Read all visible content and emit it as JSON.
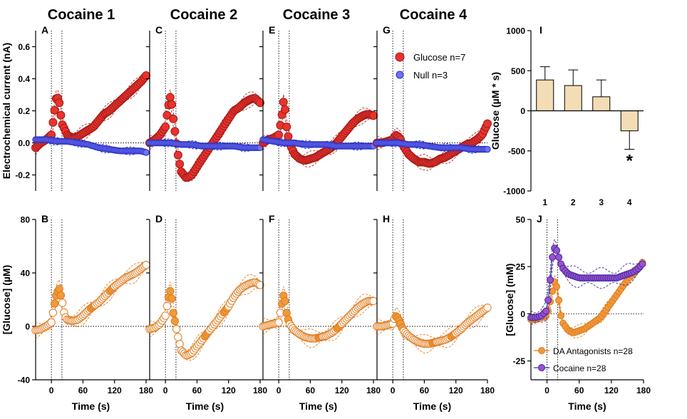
{
  "colors": {
    "glucose_dot": "#e8332e",
    "glucose_edge": "#a31a16",
    "glucose_sem": "#b3261e",
    "null_dot": "#6f73f5",
    "null_edge": "#2a2fc2",
    "null_sem": "#2a2fc2",
    "orange": "#ef9a3a",
    "orange_sem": "#e07a1e",
    "purple": "#9b4fd1",
    "purple_sem": "#3f2a9e",
    "bar_fill": "#f2ddb5",
    "axis": "#000000"
  },
  "chart_data": [
    {
      "type": "line",
      "title": "Cocaine 1",
      "panel": "A",
      "ylabel": "Electrochemical current (nA)",
      "ylim": [
        -0.3,
        0.7
      ],
      "yticks": [
        "0.6",
        "0.4",
        "0.2",
        "0.0",
        "-0.2"
      ],
      "xlim": [
        -30,
        180
      ],
      "series": [
        {
          "name": "Glucose n=7",
          "x": [
            -30,
            -20,
            -10,
            0,
            5,
            10,
            15,
            20,
            30,
            40,
            50,
            60,
            70,
            80,
            90,
            100,
            110,
            120,
            130,
            140,
            150,
            160,
            170,
            180
          ],
          "values": [
            -0.03,
            0.0,
            0.02,
            0.05,
            0.18,
            0.3,
            0.25,
            0.12,
            0.05,
            0.03,
            0.04,
            0.06,
            0.08,
            0.1,
            0.14,
            0.18,
            0.2,
            0.23,
            0.26,
            0.29,
            0.32,
            0.35,
            0.38,
            0.42
          ]
        },
        {
          "name": "Null n=3",
          "x": [
            -30,
            -10,
            10,
            30,
            50,
            70,
            90,
            110,
            130,
            150,
            170,
            180
          ],
          "values": [
            0.02,
            0.02,
            0.01,
            0.01,
            0.0,
            -0.01,
            -0.03,
            -0.04,
            -0.05,
            -0.05,
            -0.05,
            -0.06
          ]
        }
      ]
    },
    {
      "type": "line",
      "title": "Cocaine 2",
      "panel": "C",
      "ylim": [
        -0.3,
        0.7
      ],
      "xlim": [
        -30,
        180
      ],
      "series": [
        {
          "name": "Glucose n=7",
          "x": [
            -30,
            -20,
            -10,
            0,
            5,
            10,
            15,
            20,
            25,
            30,
            40,
            50,
            60,
            70,
            80,
            90,
            100,
            110,
            120,
            130,
            140,
            150,
            160,
            170,
            180
          ],
          "values": [
            0.0,
            0.02,
            0.05,
            0.1,
            0.22,
            0.3,
            0.15,
            0.02,
            -0.1,
            -0.18,
            -0.22,
            -0.2,
            -0.15,
            -0.1,
            -0.05,
            0.0,
            0.05,
            0.1,
            0.15,
            0.2,
            0.22,
            0.25,
            0.27,
            0.28,
            0.25
          ]
        },
        {
          "name": "Null n=3",
          "x": [
            -30,
            -10,
            10,
            30,
            50,
            70,
            90,
            110,
            130,
            150,
            170,
            180
          ],
          "values": [
            0.0,
            0.0,
            0.0,
            -0.01,
            -0.01,
            -0.02,
            -0.02,
            -0.02,
            -0.02,
            -0.03,
            -0.03,
            -0.03
          ]
        }
      ]
    },
    {
      "type": "line",
      "title": "Cocaine 3",
      "panel": "E",
      "ylim": [
        -0.3,
        0.7
      ],
      "xlim": [
        -30,
        180
      ],
      "series": [
        {
          "name": "Glucose n=7",
          "x": [
            -30,
            -20,
            -10,
            0,
            5,
            10,
            15,
            20,
            30,
            40,
            50,
            60,
            70,
            80,
            90,
            100,
            110,
            120,
            130,
            140,
            150,
            160,
            170,
            180
          ],
          "values": [
            0.0,
            0.02,
            0.03,
            0.05,
            0.15,
            0.28,
            0.1,
            0.0,
            -0.07,
            -0.1,
            -0.11,
            -0.1,
            -0.09,
            -0.07,
            -0.05,
            -0.03,
            0.0,
            0.04,
            0.08,
            0.12,
            0.15,
            0.17,
            0.18,
            0.17
          ]
        },
        {
          "name": "Null n=3",
          "x": [
            -30,
            -10,
            10,
            30,
            50,
            70,
            90,
            110,
            130,
            150,
            170,
            180
          ],
          "values": [
            0.02,
            0.01,
            0.0,
            0.0,
            -0.01,
            -0.01,
            -0.01,
            -0.02,
            -0.02,
            -0.02,
            -0.02,
            -0.02
          ]
        }
      ]
    },
    {
      "type": "line",
      "title": "Cocaine 4",
      "panel": "G",
      "ylim": [
        -0.3,
        0.7
      ],
      "xlim": [
        -30,
        180
      ],
      "series": [
        {
          "name": "Glucose n=7",
          "x": [
            -30,
            -20,
            -10,
            0,
            5,
            10,
            15,
            20,
            30,
            40,
            50,
            60,
            70,
            80,
            90,
            100,
            110,
            120,
            130,
            140,
            150,
            160,
            170,
            180
          ],
          "values": [
            0.0,
            0.0,
            0.01,
            0.02,
            0.05,
            0.04,
            0.02,
            -0.02,
            -0.07,
            -0.1,
            -0.12,
            -0.12,
            -0.13,
            -0.12,
            -0.1,
            -0.09,
            -0.07,
            -0.05,
            -0.03,
            -0.01,
            0.0,
            0.02,
            0.05,
            0.12
          ]
        },
        {
          "name": "Null n=3",
          "x": [
            -30,
            -10,
            10,
            30,
            50,
            70,
            90,
            110,
            130,
            150,
            170,
            180
          ],
          "values": [
            0.0,
            0.0,
            0.0,
            -0.01,
            -0.01,
            -0.02,
            -0.03,
            -0.03,
            -0.03,
            -0.04,
            -0.04,
            -0.04
          ]
        }
      ],
      "legend": [
        "Glucose n=7",
        "Null n=3"
      ]
    },
    {
      "type": "line",
      "panel": "B",
      "ylabel": "[Glucose] (µM)",
      "xlabel": "Time (s)",
      "ylim": [
        -40,
        80
      ],
      "yticks": [
        "80",
        "40",
        "0",
        "-40"
      ],
      "xticks": [
        "0",
        "60",
        "120",
        "180"
      ],
      "xlim": [
        -30,
        180
      ],
      "series": [
        {
          "name": "Glucose",
          "x": [
            -30,
            -20,
            -10,
            0,
            5,
            10,
            15,
            20,
            25,
            30,
            40,
            50,
            60,
            70,
            80,
            90,
            100,
            110,
            120,
            130,
            140,
            150,
            160,
            170,
            180
          ],
          "values": [
            -3,
            -2,
            0,
            3,
            15,
            25,
            28,
            20,
            8,
            5,
            4,
            5,
            8,
            12,
            15,
            18,
            22,
            26,
            30,
            33,
            36,
            38,
            40,
            43,
            46
          ]
        }
      ]
    },
    {
      "type": "line",
      "panel": "D",
      "xlabel": "Time (s)",
      "ylim": [
        -40,
        80
      ],
      "xticks": [
        "0",
        "60",
        "120",
        "180"
      ],
      "xlim": [
        -30,
        180
      ],
      "series": [
        {
          "name": "Glucose",
          "x": [
            -30,
            -20,
            -10,
            0,
            5,
            10,
            15,
            20,
            25,
            30,
            40,
            50,
            60,
            70,
            80,
            90,
            100,
            110,
            120,
            130,
            140,
            150,
            160,
            170,
            180
          ],
          "values": [
            -2,
            -1,
            2,
            8,
            20,
            28,
            10,
            0,
            -10,
            -18,
            -22,
            -20,
            -15,
            -10,
            -5,
            0,
            5,
            10,
            15,
            22,
            27,
            30,
            32,
            33,
            31
          ]
        }
      ]
    },
    {
      "type": "line",
      "panel": "F",
      "xlabel": "Time (s)",
      "ylim": [
        -40,
        80
      ],
      "xticks": [
        "0",
        "60",
        "120",
        "180"
      ],
      "xlim": [
        -30,
        180
      ],
      "series": [
        {
          "name": "Glucose",
          "x": [
            -30,
            -20,
            -10,
            0,
            5,
            10,
            15,
            20,
            30,
            40,
            50,
            60,
            70,
            80,
            90,
            100,
            110,
            120,
            130,
            140,
            150,
            160,
            170,
            180
          ],
          "values": [
            0,
            1,
            2,
            3,
            15,
            25,
            10,
            2,
            -3,
            -6,
            -8,
            -9,
            -9,
            -8,
            -7,
            -5,
            -2,
            2,
            6,
            10,
            14,
            17,
            19,
            19
          ]
        }
      ]
    },
    {
      "type": "line",
      "panel": "H",
      "xlabel": "Time (s)",
      "ylim": [
        -40,
        80
      ],
      "xticks": [
        "0",
        "60",
        "120",
        "180"
      ],
      "xlim": [
        -30,
        180
      ],
      "series": [
        {
          "name": "Glucose",
          "x": [
            -30,
            -20,
            -10,
            0,
            5,
            10,
            15,
            20,
            30,
            40,
            50,
            60,
            70,
            80,
            90,
            100,
            110,
            120,
            130,
            140,
            150,
            160,
            170,
            180
          ],
          "values": [
            0,
            0,
            1,
            2,
            8,
            6,
            2,
            -3,
            -7,
            -10,
            -12,
            -13,
            -13,
            -12,
            -11,
            -10,
            -8,
            -5,
            -2,
            2,
            5,
            8,
            11,
            14
          ]
        }
      ]
    },
    {
      "type": "bar",
      "panel": "I",
      "ylabel": "Glucose (µM * s)",
      "categories": [
        "1",
        "2",
        "3",
        "4"
      ],
      "values": [
        385,
        315,
        175,
        -250
      ],
      "errors": [
        165,
        195,
        210,
        230
      ],
      "ylim": [
        -1000,
        1000
      ],
      "yticks": [
        "1000",
        "500",
        "0",
        "-500",
        "-1000"
      ],
      "annotations": [
        "*"
      ]
    },
    {
      "type": "line",
      "panel": "J",
      "ylabel": "[Glucose] (mM)",
      "xlabel": "Time (s)",
      "ylim": [
        -35,
        50
      ],
      "yticks": [
        "50",
        "25",
        "0",
        "-25"
      ],
      "xticks": [
        "0",
        "60",
        "120",
        "180"
      ],
      "xlim": [
        -30,
        180
      ],
      "series": [
        {
          "name": "DA Antagonists n=28",
          "x": [
            -30,
            -20,
            -10,
            0,
            5,
            10,
            15,
            20,
            25,
            30,
            40,
            50,
            60,
            70,
            80,
            90,
            100,
            110,
            120,
            130,
            140,
            150,
            160,
            170,
            180
          ],
          "values": [
            -3,
            -3,
            -2,
            -1,
            5,
            12,
            18,
            12,
            0,
            -5,
            -9,
            -10,
            -9,
            -8,
            -6,
            -4,
            -2,
            2,
            6,
            10,
            14,
            18,
            21,
            24,
            28
          ]
        },
        {
          "name": "Cocaine n=28",
          "x": [
            -30,
            -20,
            -10,
            0,
            5,
            10,
            15,
            20,
            25,
            30,
            40,
            50,
            60,
            70,
            80,
            90,
            100,
            110,
            120,
            130,
            140,
            150,
            160,
            170,
            180
          ],
          "values": [
            -2,
            -2,
            -1,
            2,
            15,
            30,
            36,
            32,
            27,
            24,
            21,
            20,
            19,
            19,
            19,
            19,
            19,
            19,
            19,
            19,
            20,
            21,
            22,
            24,
            27
          ]
        }
      ],
      "legend": [
        "DA Antagonists n=28",
        "Cocaine n=28"
      ]
    }
  ]
}
